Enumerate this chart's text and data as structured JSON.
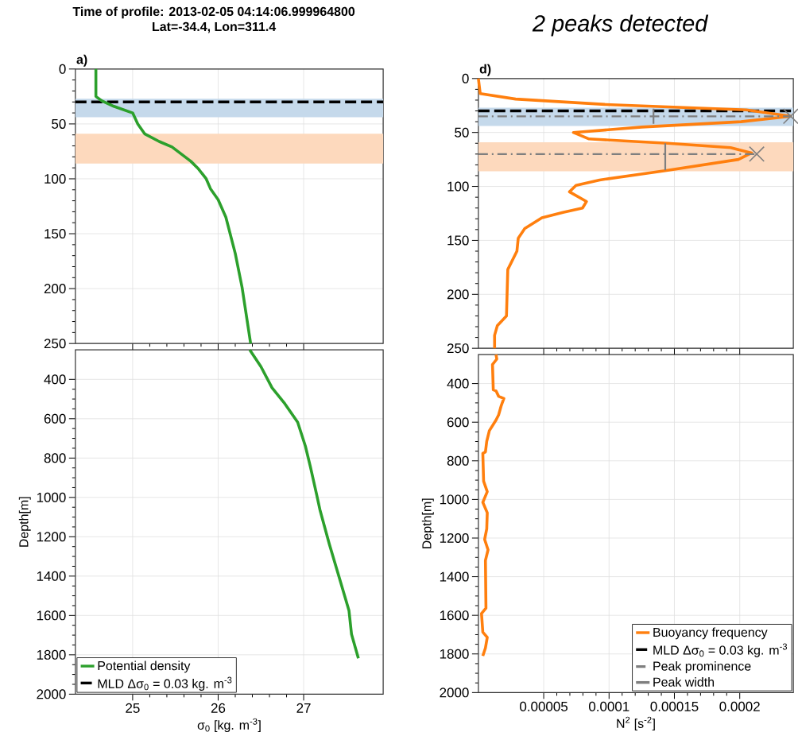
{
  "chart_data": [
    {
      "type": "line",
      "title": "Time of profile: 2013-02-05 04:14:06.999964800",
      "subtitle": "Lat=-34.4, Lon=311.4",
      "annotations": [
        "a)"
      ],
      "xlim": [
        24.33,
        27.93
      ],
      "xticks": [
        25,
        26,
        27
      ],
      "ylim": [
        250,
        0
      ],
      "yticks": [
        0,
        50,
        100,
        150,
        200,
        250
      ],
      "tick_labels": "y",
      "grid": true,
      "bands": [
        {
          "axis": "y",
          "from": 27,
          "to": 44,
          "color": "#c5d9eb"
        },
        {
          "axis": "y",
          "from": 59,
          "to": 86,
          "color": "#fdd9bd"
        }
      ],
      "series": [
        {
          "name": "MLD Δσ$_{0}$ = 0.03 kg. m$^{-3}$",
          "color": "#000000",
          "line_style": "dashed",
          "x": [
            24.33,
            27.93
          ],
          "values": [
            30,
            30
          ]
        },
        {
          "color": "#2ca02c",
          "x": [
            24.57,
            24.57,
            24.64,
            24.78,
            25.0,
            25.06,
            25.14,
            25.31,
            25.46,
            25.68,
            25.77,
            25.86,
            25.91,
            26.0,
            26.09,
            26.2,
            26.28,
            26.38
          ],
          "values": [
            0,
            25,
            29,
            34,
            40,
            50,
            59,
            66,
            71,
            84,
            91,
            100,
            109,
            119,
            135,
            168,
            199,
            250
          ]
        }
      ]
    },
    {
      "type": "line",
      "xlabel": "σ$_{0}$ [kg. m$^{-3}$]",
      "ylabel": "Depth[m]",
      "xlim": [
        24.33,
        27.93
      ],
      "xticks": [
        25,
        26,
        27
      ],
      "ylim": [
        2000,
        250
      ],
      "yticks": [
        400,
        600,
        800,
        1000,
        1200,
        1400,
        1600,
        1800,
        2000
      ],
      "grid": true,
      "legend": "bottom left",
      "series": [
        {
          "name": "Potential density",
          "color": "#2ca02c",
          "x": [
            26.37,
            26.5,
            26.63,
            26.78,
            26.93,
            27.02,
            27.08,
            27.15,
            27.19,
            27.3,
            27.42,
            27.53,
            27.56,
            27.64
          ],
          "values": [
            250,
            335,
            443,
            524,
            618,
            739,
            847,
            982,
            1062,
            1237,
            1413,
            1575,
            1696,
            1818
          ]
        }
      ]
    },
    {
      "type": "line",
      "title": "2 peaks detected",
      "annotations": [
        "d)"
      ],
      "xlim": [
        0,
        0.000241
      ],
      "xticks": [
        {
          "value": 5e-05,
          "label": null
        },
        {
          "value": 0.0001,
          "label": null
        },
        {
          "value": 0.00015,
          "label": null
        },
        {
          "value": 0.0002,
          "label": null
        }
      ],
      "ylim": [
        250,
        0
      ],
      "yticks": [
        0,
        50,
        100,
        150,
        200,
        250
      ],
      "tick_labels": "y",
      "grid": true,
      "bands": [
        {
          "axis": "y",
          "from": 27,
          "to": 44,
          "color": "#c5d9eb"
        },
        {
          "axis": "y",
          "from": 59,
          "to": 86,
          "color": "#fdd9bd"
        }
      ],
      "series": [
        {
          "name": "MLD Δσ$_{0}$ = 0.03 kg. m$^{-3}$",
          "color": "#000000",
          "line_style": "dashed",
          "x": [
            0,
            0.000241
          ],
          "values": [
            30,
            30
          ]
        },
        {
          "color": "#ff7f0e",
          "x": [
            0,
            1.4e-06,
            2.85e-05,
            9.68e-05,
            0.000205,
            0.000239,
            0.000201,
            0.000125,
            7.27e-05,
            8.47e-05,
            0.000145,
            0.000193,
            0.000209,
            0.000199,
            0.000145,
            9.28e-05,
            7.47e-05,
            6.97e-05,
            8.27e-05,
            7.97e-05,
            6.47e-05,
            4.86e-05,
            3.55e-05,
            3.05e-05,
            2.95e-05,
            2.25e-05,
            2.15e-05,
            1.45e-05,
            1.24e-05,
            1.24e-05
          ],
          "values": [
            0,
            14,
            19,
            24,
            29,
            35,
            40,
            45,
            50,
            56,
            60,
            64,
            69,
            75,
            85,
            94,
            99,
            105,
            114,
            120,
            124,
            129,
            139,
            148,
            160,
            177,
            220,
            229,
            238,
            250
          ]
        },
        {
          "name": "Peak prominence",
          "color": "#7f7f7f",
          "line_style": "dashdot",
          "x": [
            0,
            0.000239,
            null,
            0,
            0.000213
          ],
          "values": [
            35,
            35,
            null,
            70,
            70
          ]
        },
        {
          "name": "Peak width",
          "color": "#7f7f7f",
          "line_style": "solid",
          "x": [
            0.000134,
            0.000134,
            null,
            0.000143,
            0.000143
          ],
          "values": [
            28,
            42,
            null,
            60,
            85
          ]
        },
        {
          "type": "scatter",
          "marker": "cross",
          "color": "#7f7f7f",
          "x": [
            0.000239,
            0.000213
          ],
          "values": [
            35,
            70
          ]
        }
      ]
    },
    {
      "type": "line",
      "xlabel": "N$^{2}$ [s$^{-2}$]",
      "ylabel": "Depth[m]",
      "xlim": [
        0,
        0.000241
      ],
      "xticks": [
        {
          "value": 5e-05,
          "label": "0.00005"
        },
        {
          "value": 0.0001,
          "label": "0.0001"
        },
        {
          "value": 0.00015,
          "label": "0.00015"
        },
        {
          "value": 0.0002,
          "label": "0.0002"
        }
      ],
      "ylim": [
        2000,
        250
      ],
      "yticks": [
        400,
        600,
        800,
        1000,
        1200,
        1400,
        1600,
        1800,
        2000
      ],
      "grid": true,
      "legend": "bottom right",
      "series": [
        {
          "name": "Buoyancy frequency",
          "color": "#ff7f0e",
          "x": [
            1.35e-05,
            1.41e-05,
            1.08e-05,
            1.14e-05,
            1.35e-05,
            1.55e-05,
            1.95e-05,
            1.75e-05,
            1.55e-05,
            1.35e-05,
            8.4e-06,
            6.4e-06,
            5.4e-06,
            3.4e-06,
            4e-06,
            6.8e-06,
            3.4e-06,
            6.8e-06,
            6.4e-06,
            4.8e-06,
            7.4e-06,
            5.4e-06,
            5.8e-06,
            2.4e-06,
            3.4e-06,
            6.8e-06,
            5.4e-06,
            3.4e-06
          ],
          "values": [
            250,
            273,
            301,
            432,
            438,
            466,
            477,
            514,
            562,
            589,
            644,
            699,
            754,
            761,
            905,
            960,
            1015,
            1069,
            1152,
            1207,
            1261,
            1316,
            1563,
            1591,
            1687,
            1714,
            1769,
            1810
          ]
        }
      ]
    }
  ]
}
